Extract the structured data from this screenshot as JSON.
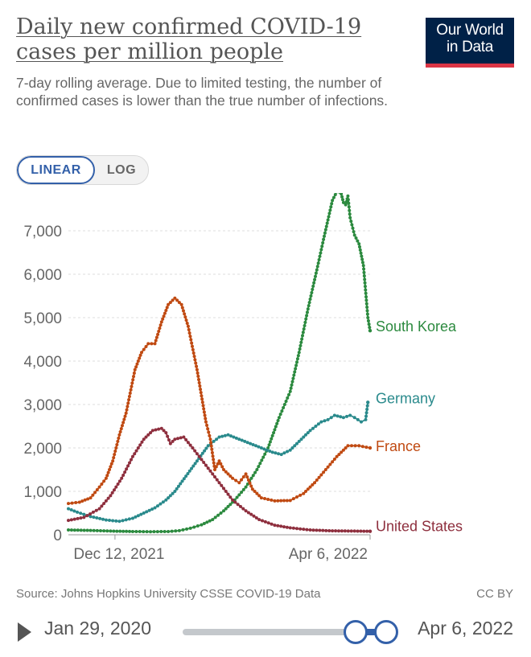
{
  "header": {
    "title": "Daily new confirmed COVID-19 cases per million people",
    "subtitle": "7-day rolling average. Due to limited testing, the number of confirmed cases is lower than the true number of infections.",
    "logo_line1": "Our World",
    "logo_line2": "in Data",
    "logo_bg_color": "#002147",
    "logo_accent_color": "#dc3545"
  },
  "scale_toggle": {
    "linear_label": "LINEAR",
    "log_label": "LOG",
    "active": "linear"
  },
  "chart_data": {
    "type": "line",
    "title": "Daily new confirmed COVID-19 cases per million people",
    "ylim": [
      0,
      7500
    ],
    "xlim": [
      "2021-11-21",
      "2022-04-06"
    ],
    "y_ticks": [
      {
        "value": 0,
        "label": "0"
      },
      {
        "value": 1000,
        "label": "1,000"
      },
      {
        "value": 2000,
        "label": "2,000"
      },
      {
        "value": 3000,
        "label": "3,000"
      },
      {
        "value": 4000,
        "label": "4,000"
      },
      {
        "value": 5000,
        "label": "5,000"
      },
      {
        "value": 6000,
        "label": "6,000"
      },
      {
        "value": 7000,
        "label": "7,000"
      }
    ],
    "x_ticks": [
      {
        "value": "2021-12-12",
        "label": "Dec 12, 2021"
      },
      {
        "value": "2022-04-06",
        "label": "Apr 6, 2022"
      }
    ],
    "grid": true,
    "legend": "end-of-line labels",
    "series": [
      {
        "name": "South Korea",
        "color": "#2c8a3f",
        "points": [
          [
            "2021-11-21",
            110
          ],
          [
            "2021-12-01",
            100
          ],
          [
            "2021-12-10",
            85
          ],
          [
            "2021-12-20",
            75
          ],
          [
            "2021-12-28",
            70
          ],
          [
            "2022-01-05",
            75
          ],
          [
            "2022-01-10",
            95
          ],
          [
            "2022-01-15",
            150
          ],
          [
            "2022-01-20",
            230
          ],
          [
            "2022-01-25",
            350
          ],
          [
            "2022-01-30",
            550
          ],
          [
            "2022-02-04",
            800
          ],
          [
            "2022-02-09",
            1100
          ],
          [
            "2022-02-14",
            1500
          ],
          [
            "2022-02-19",
            2000
          ],
          [
            "2022-02-24",
            2700
          ],
          [
            "2022-03-01",
            3300
          ],
          [
            "2022-03-05",
            4200
          ],
          [
            "2022-03-09",
            5200
          ],
          [
            "2022-03-13",
            6100
          ],
          [
            "2022-03-16",
            6800
          ],
          [
            "2022-03-20",
            7700
          ],
          [
            "2022-03-22",
            7900
          ],
          [
            "2022-03-24",
            7850
          ],
          [
            "2022-03-25",
            7650
          ],
          [
            "2022-03-26",
            7600
          ],
          [
            "2022-03-27",
            7800
          ],
          [
            "2022-03-28",
            7300
          ],
          [
            "2022-03-30",
            6900
          ],
          [
            "2022-04-01",
            6700
          ],
          [
            "2022-04-03",
            6200
          ],
          [
            "2022-04-05",
            5000
          ],
          [
            "2022-04-06",
            4700
          ]
        ]
      },
      {
        "name": "Germany",
        "color": "#2a8a8c",
        "points": [
          [
            "2021-11-21",
            600
          ],
          [
            "2021-11-25",
            520
          ],
          [
            "2021-12-01",
            420
          ],
          [
            "2021-12-08",
            340
          ],
          [
            "2021-12-14",
            310
          ],
          [
            "2021-12-20",
            380
          ],
          [
            "2021-12-25",
            500
          ],
          [
            "2021-12-30",
            620
          ],
          [
            "2022-01-04",
            800
          ],
          [
            "2022-01-08",
            1000
          ],
          [
            "2022-01-13",
            1350
          ],
          [
            "2022-01-18",
            1700
          ],
          [
            "2022-01-23",
            2050
          ],
          [
            "2022-01-28",
            2250
          ],
          [
            "2022-02-01",
            2300
          ],
          [
            "2022-02-06",
            2200
          ],
          [
            "2022-02-11",
            2100
          ],
          [
            "2022-02-16",
            2000
          ],
          [
            "2022-02-21",
            1900
          ],
          [
            "2022-02-25",
            1850
          ],
          [
            "2022-03-01",
            1950
          ],
          [
            "2022-03-05",
            2150
          ],
          [
            "2022-03-10",
            2400
          ],
          [
            "2022-03-15",
            2600
          ],
          [
            "2022-03-18",
            2650
          ],
          [
            "2022-03-21",
            2750
          ],
          [
            "2022-03-25",
            2700
          ],
          [
            "2022-03-28",
            2750
          ],
          [
            "2022-03-30",
            2700
          ],
          [
            "2022-04-02",
            2600
          ],
          [
            "2022-04-04",
            2650
          ],
          [
            "2022-04-05",
            3050
          ]
        ]
      },
      {
        "name": "France",
        "color": "#c04a12",
        "points": [
          [
            "2021-11-21",
            720
          ],
          [
            "2021-11-26",
            750
          ],
          [
            "2021-12-01",
            850
          ],
          [
            "2021-12-05",
            1100
          ],
          [
            "2021-12-08",
            1300
          ],
          [
            "2021-12-11",
            1700
          ],
          [
            "2021-12-14",
            2300
          ],
          [
            "2021-12-17",
            2800
          ],
          [
            "2021-12-21",
            3800
          ],
          [
            "2021-12-24",
            4200
          ],
          [
            "2021-12-27",
            4400
          ],
          [
            "2021-12-30",
            4400
          ],
          [
            "2022-01-02",
            4900
          ],
          [
            "2022-01-05",
            5300
          ],
          [
            "2022-01-08",
            5450
          ],
          [
            "2022-01-11",
            5300
          ],
          [
            "2022-01-14",
            4800
          ],
          [
            "2022-01-18",
            3800
          ],
          [
            "2022-01-22",
            2600
          ],
          [
            "2022-01-24",
            2200
          ],
          [
            "2022-01-26",
            1500
          ],
          [
            "2022-01-28",
            1700
          ],
          [
            "2022-01-30",
            1500
          ],
          [
            "2022-02-03",
            1300
          ],
          [
            "2022-02-06",
            1200
          ],
          [
            "2022-02-09",
            1400
          ],
          [
            "2022-02-12",
            1050
          ],
          [
            "2022-02-16",
            850
          ],
          [
            "2022-02-22",
            780
          ],
          [
            "2022-03-01",
            790
          ],
          [
            "2022-03-07",
            950
          ],
          [
            "2022-03-12",
            1200
          ],
          [
            "2022-03-17",
            1500
          ],
          [
            "2022-03-22",
            1800
          ],
          [
            "2022-03-27",
            2050
          ],
          [
            "2022-04-01",
            2050
          ],
          [
            "2022-04-06",
            2000
          ]
        ]
      },
      {
        "name": "United States",
        "color": "#8e2f3e",
        "points": [
          [
            "2021-11-21",
            330
          ],
          [
            "2021-11-28",
            400
          ],
          [
            "2021-12-05",
            600
          ],
          [
            "2021-12-10",
            900
          ],
          [
            "2021-12-15",
            1300
          ],
          [
            "2021-12-20",
            1800
          ],
          [
            "2021-12-25",
            2200
          ],
          [
            "2021-12-29",
            2400
          ],
          [
            "2022-01-02",
            2450
          ],
          [
            "2022-01-04",
            2350
          ],
          [
            "2022-01-06",
            2100
          ],
          [
            "2022-01-08",
            2200
          ],
          [
            "2022-01-12",
            2250
          ],
          [
            "2022-01-16",
            2000
          ],
          [
            "2022-01-22",
            1600
          ],
          [
            "2022-01-28",
            1200
          ],
          [
            "2022-02-03",
            800
          ],
          [
            "2022-02-09",
            550
          ],
          [
            "2022-02-15",
            350
          ],
          [
            "2022-02-22",
            220
          ],
          [
            "2022-03-01",
            160
          ],
          [
            "2022-03-10",
            110
          ],
          [
            "2022-03-20",
            90
          ],
          [
            "2022-03-30",
            85
          ],
          [
            "2022-04-06",
            80
          ]
        ]
      }
    ]
  },
  "footer": {
    "source": "Source: Johns Hopkins University CSSE COVID-19 Data",
    "license": "CC BY"
  },
  "timeline": {
    "start_date": "Jan 29, 2020",
    "end_date": "Apr 6, 2022"
  }
}
